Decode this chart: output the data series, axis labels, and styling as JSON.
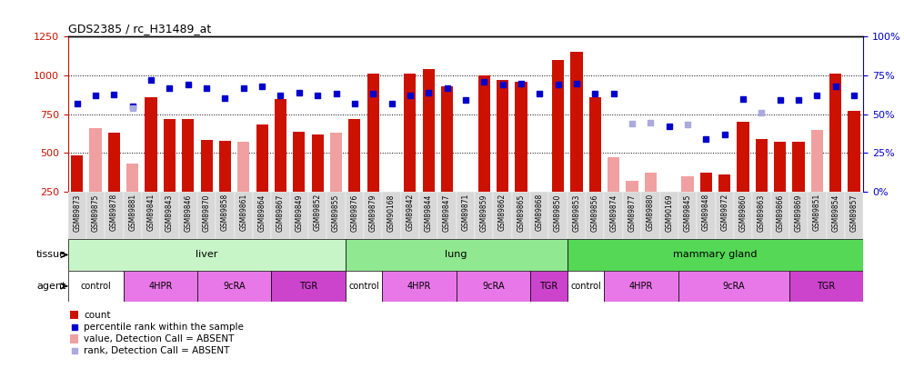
{
  "title": "GDS2385 / rc_H31489_at",
  "samples": [
    "GSM89873",
    "GSM89875",
    "GSM89878",
    "GSM89881",
    "GSM89841",
    "GSM89843",
    "GSM89846",
    "GSM89870",
    "GSM89858",
    "GSM89861",
    "GSM89864",
    "GSM89867",
    "GSM89849",
    "GSM89852",
    "GSM89855",
    "GSM89876",
    "GSM89879",
    "GSM90168",
    "GSM89842",
    "GSM89844",
    "GSM89847",
    "GSM89871",
    "GSM89859",
    "GSM89862",
    "GSM89865",
    "GSM89868",
    "GSM89850",
    "GSM89853",
    "GSM89856",
    "GSM89874",
    "GSM89877",
    "GSM89880",
    "GSM90169",
    "GSM89845",
    "GSM89848",
    "GSM89872",
    "GSM89860",
    "GSM89863",
    "GSM89866",
    "GSM89869",
    "GSM89851",
    "GSM89854",
    "GSM89857"
  ],
  "count": [
    480,
    null,
    630,
    null,
    860,
    720,
    720,
    580,
    575,
    null,
    680,
    850,
    635,
    620,
    null,
    720,
    1010,
    null,
    1010,
    1040,
    930,
    null,
    1000,
    970,
    960,
    null,
    1100,
    1155,
    860,
    null,
    null,
    null,
    null,
    null,
    370,
    360,
    700,
    590,
    570,
    570,
    null,
    1010,
    770
  ],
  "count_absent": [
    null,
    660,
    null,
    430,
    null,
    null,
    null,
    null,
    null,
    570,
    null,
    null,
    null,
    null,
    630,
    null,
    null,
    null,
    null,
    null,
    null,
    null,
    null,
    null,
    null,
    null,
    null,
    null,
    null,
    470,
    320,
    370,
    null,
    345,
    null,
    null,
    null,
    null,
    null,
    null,
    645,
    null,
    null
  ],
  "pct_rank": [
    820,
    870,
    875,
    800,
    970,
    920,
    940,
    920,
    855,
    920,
    930,
    870,
    890,
    870,
    880,
    820,
    880,
    820,
    870,
    890,
    920,
    840,
    960,
    940,
    950,
    880,
    940,
    950,
    880,
    880,
    null,
    null,
    670,
    null,
    590,
    620,
    850,
    null,
    840,
    840,
    870,
    930,
    870
  ],
  "pct_rank_absent": [
    null,
    null,
    null,
    790,
    null,
    null,
    null,
    null,
    null,
    null,
    null,
    null,
    null,
    null,
    null,
    null,
    null,
    null,
    null,
    null,
    null,
    null,
    null,
    null,
    null,
    null,
    null,
    null,
    null,
    null,
    690,
    695,
    null,
    680,
    null,
    null,
    null,
    760,
    null,
    null,
    null,
    null,
    null
  ],
  "tissue_groups": [
    {
      "label": "liver",
      "start": 0,
      "end": 15,
      "color": "#c8f5c8"
    },
    {
      "label": "lung",
      "start": 15,
      "end": 27,
      "color": "#90e890"
    },
    {
      "label": "mammary gland",
      "start": 27,
      "end": 43,
      "color": "#55d855"
    }
  ],
  "agent_groups": [
    {
      "label": "control",
      "start": 0,
      "end": 3,
      "color": "#ffffff"
    },
    {
      "label": "4HPR",
      "start": 3,
      "end": 7,
      "color": "#e878e8"
    },
    {
      "label": "9cRA",
      "start": 7,
      "end": 11,
      "color": "#e878e8"
    },
    {
      "label": "TGR",
      "start": 11,
      "end": 15,
      "color": "#cc44cc"
    },
    {
      "label": "control",
      "start": 15,
      "end": 17,
      "color": "#ffffff"
    },
    {
      "label": "4HPR",
      "start": 17,
      "end": 21,
      "color": "#e878e8"
    },
    {
      "label": "9cRA",
      "start": 21,
      "end": 25,
      "color": "#e878e8"
    },
    {
      "label": "TGR",
      "start": 25,
      "end": 27,
      "color": "#cc44cc"
    },
    {
      "label": "control",
      "start": 27,
      "end": 29,
      "color": "#ffffff"
    },
    {
      "label": "4HPR",
      "start": 29,
      "end": 33,
      "color": "#e878e8"
    },
    {
      "label": "9cRA",
      "start": 33,
      "end": 39,
      "color": "#e878e8"
    },
    {
      "label": "TGR",
      "start": 39,
      "end": 43,
      "color": "#cc44cc"
    }
  ],
  "ylim_left": [
    250,
    1250
  ],
  "ylim_right": [
    0,
    100
  ],
  "yticks_left": [
    250,
    500,
    750,
    1000,
    1250
  ],
  "yticks_right": [
    0,
    25,
    50,
    75,
    100
  ],
  "bar_color": "#cc1100",
  "bar_absent_color": "#f0a0a0",
  "pct_color": "#0000cc",
  "pct_absent_color": "#aaaadd",
  "tick_bg": "#d8d8d8",
  "plot_bg": "#ffffff"
}
